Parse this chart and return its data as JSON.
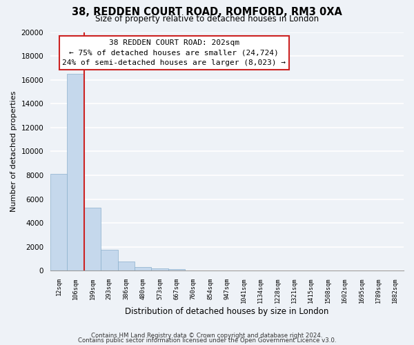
{
  "title": "38, REDDEN COURT ROAD, ROMFORD, RM3 0XA",
  "subtitle": "Size of property relative to detached houses in London",
  "xlabel": "Distribution of detached houses by size in London",
  "ylabel": "Number of detached properties",
  "bar_labels": [
    "12sqm",
    "106sqm",
    "199sqm",
    "293sqm",
    "386sqm",
    "480sqm",
    "573sqm",
    "667sqm",
    "760sqm",
    "854sqm",
    "947sqm",
    "1041sqm",
    "1134sqm",
    "1228sqm",
    "1321sqm",
    "1415sqm",
    "1508sqm",
    "1602sqm",
    "1695sqm",
    "1789sqm",
    "1882sqm"
  ],
  "bar_values": [
    8100,
    16500,
    5300,
    1750,
    750,
    320,
    220,
    160,
    0,
    0,
    0,
    0,
    0,
    0,
    0,
    0,
    0,
    0,
    0,
    0,
    0
  ],
  "bar_color": "#c5d8ec",
  "bar_edge_color": "#8ab0cc",
  "vline_color": "#cc2222",
  "ylim": [
    0,
    20000
  ],
  "yticks": [
    0,
    2000,
    4000,
    6000,
    8000,
    10000,
    12000,
    14000,
    16000,
    18000,
    20000
  ],
  "annotation_title": "38 REDDEN COURT ROAD: 202sqm",
  "annotation_line1": "← 75% of detached houses are smaller (24,724)",
  "annotation_line2": "24% of semi-detached houses are larger (8,023) →",
  "background_color": "#eef2f7",
  "grid_color": "#ffffff",
  "footer1": "Contains HM Land Registry data © Crown copyright and database right 2024.",
  "footer2": "Contains public sector information licensed under the Open Government Licence v3.0."
}
